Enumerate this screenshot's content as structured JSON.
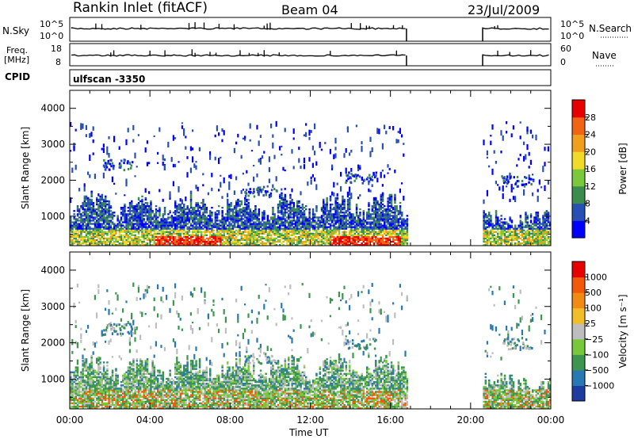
{
  "header": {
    "station": "Rankin Inlet (fitACF)",
    "beam": "Beam 04",
    "date": "23/Jul/2009"
  },
  "summary": {
    "nsky_label": "N.Sky",
    "nsky_ticks": [
      "10^5",
      "10^0"
    ],
    "nsearch_label": "N.Search",
    "freq_label_1": "Freq.",
    "freq_label_2": "[MHz]",
    "freq_ticks": [
      "18",
      "8"
    ],
    "nave_label": "Nave",
    "nave_ticks": [
      "60",
      "0"
    ],
    "cpid_label": "CPID",
    "cpid_value": "ulfscan -3350"
  },
  "chart_data": [
    {
      "type": "heatmap",
      "title": "",
      "ylabel": "Slant Range [km]",
      "xlabel": "",
      "x_ticks": [
        "00:00",
        "04:00",
        "08:00",
        "12:00",
        "16:00",
        "20:00",
        "00:00"
      ],
      "xlim_hours": [
        0,
        24
      ],
      "ylim": [
        180,
        4500
      ],
      "y_ticks": [
        1000,
        2000,
        3000,
        4000
      ],
      "data_gap_hours": [
        16.8,
        20.6
      ],
      "colorbar": {
        "label": "Power [dB]",
        "ticks": [
          "4",
          "8",
          "12",
          "16",
          "20",
          "24",
          "28"
        ],
        "colors": [
          "#0000ff",
          "#2850b4",
          "#3c8c50",
          "#7cc83c",
          "#f0dc28",
          "#f0a01e",
          "#f06414",
          "#e60000"
        ]
      }
    },
    {
      "type": "heatmap",
      "title": "",
      "ylabel": "Slant Range [km]",
      "xlabel": "Time UT",
      "x_ticks": [
        "00:00",
        "04:00",
        "08:00",
        "12:00",
        "16:00",
        "20:00",
        "00:00"
      ],
      "xlim_hours": [
        0,
        24
      ],
      "ylim": [
        180,
        4500
      ],
      "y_ticks": [
        1000,
        2000,
        3000,
        4000
      ],
      "data_gap_hours": [
        16.8,
        20.6
      ],
      "colorbar": {
        "label": "Velocity [m s⁻¹]",
        "ticks": [
          "1000",
          "500",
          "100",
          "25",
          "−25",
          "−100",
          "−500",
          "−1000"
        ],
        "colors": [
          "#1e3ca0",
          "#2878b4",
          "#3c9650",
          "#78c83c",
          "#bebebe",
          "#f0be28",
          "#f08c14",
          "#f05a0a",
          "#e60000"
        ]
      }
    }
  ]
}
